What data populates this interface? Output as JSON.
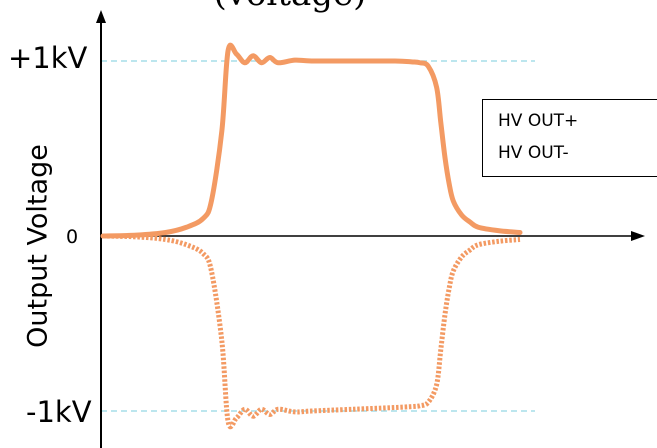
{
  "chart_data": {
    "type": "line",
    "title_fragment": "(voltage)",
    "ylabel": "Output Voltage",
    "xlabel": "",
    "y_ticks": [
      "+1kV",
      "0",
      "-1kV"
    ],
    "ylim": [
      -1,
      1
    ],
    "reference_lines": [
      1,
      -1
    ],
    "reference_line_color": "#a6dde8",
    "series": [
      {
        "name": "HV OUT+",
        "style": "solid",
        "color": "#f39a63",
        "x": [
          0.0,
          0.08,
          0.15,
          0.2,
          0.24,
          0.26,
          0.285,
          0.3,
          0.32,
          0.34,
          0.36,
          0.38,
          0.4,
          0.42,
          0.46,
          0.5,
          0.6,
          0.7,
          0.74,
          0.76,
          0.78,
          0.8,
          0.81,
          0.82,
          0.83,
          0.84,
          0.86,
          0.88,
          0.9,
          0.95,
          1.0
        ],
        "y": [
          0.0,
          0.005,
          0.02,
          0.05,
          0.1,
          0.2,
          0.6,
          1.06,
          1.04,
          0.99,
          1.03,
          0.99,
          1.02,
          0.99,
          1.005,
          1.0,
          1.0,
          1.0,
          0.995,
          0.99,
          0.97,
          0.85,
          0.65,
          0.45,
          0.3,
          0.2,
          0.12,
          0.08,
          0.05,
          0.03,
          0.02
        ]
      },
      {
        "name": "HV OUT-",
        "style": "dotted",
        "color": "#f39a63",
        "x": [
          0.0,
          0.08,
          0.15,
          0.2,
          0.24,
          0.26,
          0.285,
          0.3,
          0.32,
          0.34,
          0.36,
          0.38,
          0.4,
          0.42,
          0.46,
          0.5,
          0.6,
          0.7,
          0.74,
          0.76,
          0.78,
          0.8,
          0.81,
          0.82,
          0.83,
          0.84,
          0.86,
          0.88,
          0.9,
          0.95,
          1.0
        ],
        "y": [
          0.0,
          -0.005,
          -0.02,
          -0.05,
          -0.1,
          -0.2,
          -0.6,
          -1.06,
          -1.04,
          -0.99,
          -1.03,
          -0.99,
          -1.02,
          -0.99,
          -1.005,
          -1.0,
          -0.99,
          -0.98,
          -0.975,
          -0.97,
          -0.95,
          -0.85,
          -0.65,
          -0.45,
          -0.3,
          -0.2,
          -0.12,
          -0.08,
          -0.05,
          -0.03,
          -0.02
        ]
      }
    ],
    "legend": {
      "placement": "right",
      "entries": [
        "HV OUT+",
        "HV OUT-"
      ]
    }
  }
}
